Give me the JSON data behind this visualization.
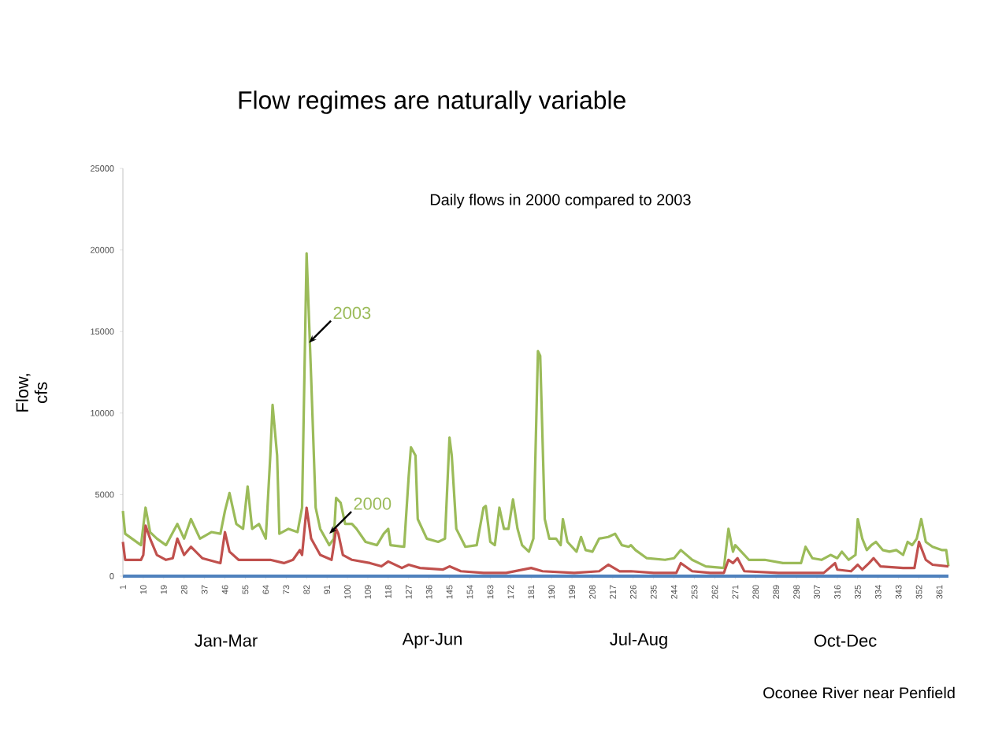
{
  "chart_data": {
    "type": "line",
    "title": "Flow regimes are naturally variable",
    "subtitle": "Daily flows in 2000 compared to 2003",
    "ylabel": "Flow, cfs",
    "xlim": [
      1,
      365
    ],
    "ylim": [
      0,
      25000
    ],
    "xticks": [
      1,
      10,
      19,
      28,
      37,
      46,
      55,
      64,
      73,
      82,
      91,
      100,
      109,
      118,
      127,
      136,
      145,
      154,
      163,
      172,
      181,
      190,
      199,
      208,
      217,
      226,
      235,
      244,
      253,
      262,
      271,
      280,
      289,
      298,
      307,
      316,
      325,
      334,
      343,
      352,
      361
    ],
    "yticks": [
      0,
      5000,
      10000,
      15000,
      20000,
      25000
    ],
    "grid": false,
    "marker": "none",
    "line_style": "solid",
    "series": [
      {
        "color": "#9bbb59",
        "x": [
          1,
          2,
          9,
          11,
          13,
          16,
          20,
          25,
          28,
          31,
          35,
          40,
          44,
          46,
          48,
          51,
          54,
          56,
          58,
          61,
          64,
          66,
          67,
          69,
          70,
          74,
          78,
          80,
          82,
          84,
          86,
          88,
          92,
          94,
          95,
          97,
          99,
          102,
          104,
          108,
          113,
          116,
          118,
          119,
          125,
          127,
          128,
          130,
          131,
          135,
          140,
          143,
          145,
          146,
          148,
          152,
          157,
          160,
          161,
          163,
          165,
          167,
          169,
          171,
          173,
          175,
          177,
          180,
          182,
          184,
          185,
          187,
          189,
          192,
          194,
          195,
          197,
          201,
          203,
          205,
          208,
          211,
          215,
          218,
          221,
          224,
          225,
          227,
          232,
          240,
          244,
          247,
          252,
          258,
          266,
          268,
          270,
          271,
          273,
          277,
          284,
          292,
          300,
          302,
          305,
          309,
          313,
          316,
          318,
          321,
          324,
          325,
          327,
          329,
          331,
          333,
          336,
          339,
          342,
          345,
          347,
          349,
          351,
          353,
          355,
          358,
          362,
          364,
          365
        ],
        "values": [
          4000,
          2600,
          1900,
          4200,
          2700,
          2300,
          1900,
          3200,
          2300,
          3500,
          2300,
          2700,
          2600,
          4000,
          5100,
          3200,
          2900,
          5500,
          2900,
          3200,
          2300,
          7400,
          10500,
          7400,
          2600,
          2900,
          2700,
          4200,
          19800,
          12200,
          4200,
          2900,
          1900,
          2300,
          4800,
          4500,
          3200,
          3200,
          2900,
          2100,
          1900,
          2600,
          2900,
          1900,
          1800,
          6100,
          7900,
          7400,
          3500,
          2300,
          2100,
          2300,
          8500,
          7400,
          2900,
          1800,
          1900,
          4200,
          4300,
          2100,
          1900,
          4200,
          2900,
          2900,
          4700,
          2900,
          1900,
          1500,
          2300,
          13800,
          13500,
          3500,
          2300,
          2300,
          1900,
          3500,
          2100,
          1500,
          2400,
          1600,
          1500,
          2300,
          2400,
          2600,
          1900,
          1800,
          1900,
          1600,
          1100,
          1000,
          1100,
          1600,
          1000,
          600,
          500,
          2900,
          1500,
          1900,
          1600,
          1000,
          1000,
          800,
          800,
          1800,
          1100,
          1000,
          1300,
          1100,
          1500,
          1000,
          1300,
          3500,
          2300,
          1600,
          1900,
          2100,
          1600,
          1500,
          1600,
          1300,
          2100,
          1900,
          2300,
          3500,
          2100,
          1800,
          1600,
          1600,
          600
        ]
      },
      {
        "color": "#c0504d",
        "x": [
          1,
          2,
          9,
          10,
          11,
          13,
          16,
          20,
          23,
          25,
          28,
          31,
          36,
          44,
          46,
          48,
          52,
          60,
          66,
          72,
          76,
          79,
          80,
          82,
          84,
          88,
          93,
          94,
          95,
          96,
          98,
          102,
          110,
          115,
          118,
          124,
          127,
          132,
          142,
          145,
          150,
          160,
          170,
          181,
          186,
          200,
          211,
          215,
          220,
          225,
          235,
          245,
          247,
          252,
          260,
          266,
          268,
          270,
          272,
          275,
          290,
          310,
          315,
          316,
          322,
          325,
          327,
          330,
          332,
          335,
          345,
          350,
          352,
          355,
          358,
          365
        ],
        "values": [
          2100,
          1000,
          1000,
          1300,
          3100,
          2300,
          1300,
          1000,
          1100,
          2300,
          1300,
          1800,
          1100,
          800,
          2700,
          1500,
          1000,
          1000,
          1000,
          800,
          1000,
          1600,
          1300,
          4200,
          2300,
          1300,
          1000,
          1900,
          2900,
          2600,
          1300,
          1000,
          800,
          600,
          900,
          500,
          700,
          500,
          400,
          600,
          300,
          200,
          200,
          500,
          300,
          200,
          300,
          700,
          300,
          300,
          200,
          200,
          800,
          300,
          200,
          200,
          1000,
          800,
          1100,
          300,
          200,
          200,
          800,
          400,
          300,
          700,
          400,
          800,
          1100,
          600,
          500,
          500,
          2100,
          1000,
          700,
          600
        ]
      }
    ],
    "annotations": [
      {
        "text": "2003",
        "x": 83,
        "y": 14300
      },
      {
        "text": "2000",
        "x": 92,
        "y": 2600
      },
      "Jan-Mar",
      "Apr-Jun",
      "Jul-Aug",
      "Oct-Dec",
      "Oconee River near Penfield"
    ]
  }
}
